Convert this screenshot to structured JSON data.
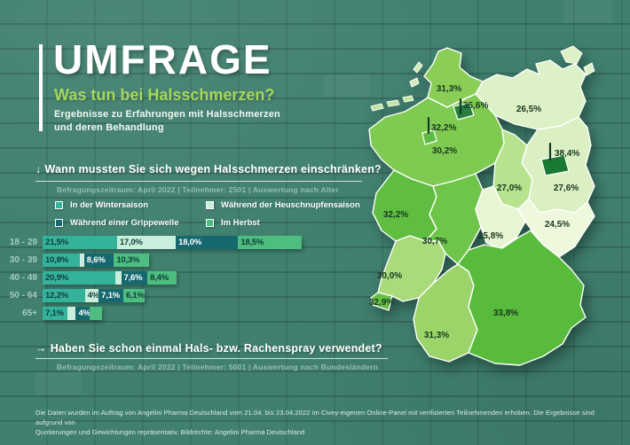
{
  "brand": {
    "title": "UMFRAGE",
    "subtitle": "Was tun bei Halsschmerzen?",
    "description": [
      "Ergebnisse zu Erfahrungen mit Halsschmerzen",
      "und deren Behandlung"
    ]
  },
  "question1": {
    "arrow": "↓",
    "text": "Wann mussten Sie sich wegen Halsschmerzen einschränken?",
    "meta": "Befragungszeitraum: April 2022   |   Teilnehmer: 2501   |   Auswertung nach Alter"
  },
  "question2": {
    "arrow": "→",
    "text": "Haben Sie schon einmal Hals- bzw. Rachenspray verwendet?",
    "meta": "Befragungszeitraum: April 2022   |   Teilnehmer: 5001   |   Auswertung nach Bundesländern"
  },
  "legend": {
    "items": [
      {
        "key": "wintersaison",
        "label": "In der Wintersaison",
        "color": "#35b29a",
        "label_text_color": "#0e3c38"
      },
      {
        "key": "heuschnupfensaison",
        "label": "Während der Heuschnupfensaison",
        "color": "#c9efdc",
        "label_text_color": "#0e3c38"
      },
      {
        "key": "grippewelle",
        "label": "Während einer Grippewelle",
        "color": "#15686e",
        "label_text_color": "#ffffff"
      },
      {
        "key": "herbst",
        "label": "Im Herbst",
        "color": "#4ebd80",
        "label_text_color": "#0e3c38"
      }
    ]
  },
  "chart_data": [
    {
      "type": "bar",
      "stacked": true,
      "orientation": "horizontal",
      "unit": "percent",
      "title": "Wann mussten Sie sich wegen Halsschmerzen einschränken?",
      "categories": [
        "18 - 29",
        "30 - 39",
        "40 - 49",
        "50 - 64",
        "65+"
      ],
      "series": [
        {
          "name": "In der Wintersaison",
          "values": [
            21.5,
            10.8,
            20.9,
            12.2,
            7.1
          ]
        },
        {
          "name": "Während der Heuschnupfensaison",
          "values": [
            17.0,
            1.2,
            1.8,
            4.0,
            2.5
          ]
        },
        {
          "name": "Während einer Grippewelle",
          "values": [
            18.0,
            8.6,
            7.6,
            7.1,
            4.0
          ]
        },
        {
          "name": "Im Herbst",
          "values": [
            18.5,
            10.3,
            8.4,
            6.1,
            3.5
          ]
        }
      ],
      "value_labels": [
        [
          "21,5%",
          "17,0%",
          "18,0%",
          "18,5%"
        ],
        [
          "10,8%",
          "",
          "8,6%",
          "10,3%"
        ],
        [
          "20,9%",
          "",
          "7,6%",
          "8,4%"
        ],
        [
          "12,2%",
          "4%",
          "7,1%",
          "6,1%"
        ],
        [
          "7,1%",
          "",
          "4%",
          ""
        ]
      ],
      "xlim": [
        0,
        80
      ],
      "legend_position": "top"
    },
    {
      "type": "heatmap",
      "subtype": "choropleth-germany",
      "title": "Haben Sie schon einmal Hals- bzw. Rachenspray verwendet? (Ja, in %)",
      "states": [
        {
          "name": "Schleswig-Holstein",
          "value": 31.3
        },
        {
          "name": "Hamburg",
          "value": 35.6
        },
        {
          "name": "Mecklenburg-Vorpommern",
          "value": 26.5
        },
        {
          "name": "Bremen",
          "value": 32.2
        },
        {
          "name": "Niedersachsen",
          "value": 30.2
        },
        {
          "name": "Berlin",
          "value": 38.4
        },
        {
          "name": "Sachsen-Anhalt",
          "value": 27.0
        },
        {
          "name": "Brandenburg",
          "value": 27.6
        },
        {
          "name": "Nordrhein-Westfalen",
          "value": 32.2
        },
        {
          "name": "Thüringen",
          "value": 25.8
        },
        {
          "name": "Sachsen",
          "value": 24.5
        },
        {
          "name": "Hessen",
          "value": 30.7
        },
        {
          "name": "Rheinland-Pfalz",
          "value": 30.0
        },
        {
          "name": "Saarland",
          "value": 32.9
        },
        {
          "name": "Baden-Württemberg",
          "value": 31.3
        },
        {
          "name": "Bayern",
          "value": 33.8
        }
      ]
    }
  ],
  "map": {
    "states": [
      {
        "id": "schleswig-holstein",
        "name": "Schleswig-Holstein",
        "label": "31,3%",
        "color": "#8ace58"
      },
      {
        "id": "hamburg",
        "name": "Hamburg",
        "label": "35,6%",
        "color": "#257f3e"
      },
      {
        "id": "mecklenburg-vorpommern",
        "name": "Mecklenburg-Vorpommern",
        "label": "26,5%",
        "color": "#dcf1c5"
      },
      {
        "id": "bremen",
        "name": "Bremen",
        "label": "32,2%",
        "color": "#5ebc44"
      },
      {
        "id": "niedersachsen",
        "name": "Niedersachsen",
        "label": "30,2%",
        "color": "#7fca50"
      },
      {
        "id": "berlin",
        "name": "Berlin",
        "label": "38,4%",
        "color": "#1b7a31"
      },
      {
        "id": "sachsen-anhalt",
        "name": "Sachsen-Anhalt",
        "label": "27,0%",
        "color": "#b7e38e"
      },
      {
        "id": "brandenburg",
        "name": "Brandenburg",
        "label": "27,6%",
        "color": "#daf0c2"
      },
      {
        "id": "nordrhein-westfalen",
        "name": "Nordrhein-Westfalen",
        "label": "32,2%",
        "color": "#5fbe41"
      },
      {
        "id": "thueringen",
        "name": "Thüringen",
        "label": "25,8%",
        "color": "#e8f5d3"
      },
      {
        "id": "sachsen",
        "name": "Sachsen",
        "label": "24,5%",
        "color": "#edf8dc"
      },
      {
        "id": "hessen",
        "name": "Hessen",
        "label": "30,7%",
        "color": "#6ec549"
      },
      {
        "id": "rheinland-pfalz",
        "name": "Rheinland-Pfalz",
        "label": "30,0%",
        "color": "#a9db7b"
      },
      {
        "id": "saarland",
        "name": "Saarland",
        "label": "32,9%",
        "color": "#66c146"
      },
      {
        "id": "baden-wuerttemberg",
        "name": "Baden-Württemberg",
        "label": "31,3%",
        "color": "#9bd569"
      },
      {
        "id": "bayern",
        "name": "Bayern",
        "label": "33,8%",
        "color": "#59bb3c"
      }
    ]
  },
  "footer": {
    "line1": "Die Daten wurden im Auftrag von Angelini Pharma Deutschland vom 21.04. bis 23.04.2022 im Civey-eigenen Online-Panel mit verifizierten Teilnehmenden erhoben. Die Ergebnisse sind aufgrund von",
    "line2": "Quotierungen und Gewichtungen repräsentativ. Bildrechte: Angelini Pharma Deutschland"
  },
  "colors": {
    "wall": "#41806f",
    "accent_green": "#a5d75c",
    "heading_text": "#ffffff",
    "meta_text": "#94bfb1",
    "axis_label_text": "#a3cdbe"
  }
}
